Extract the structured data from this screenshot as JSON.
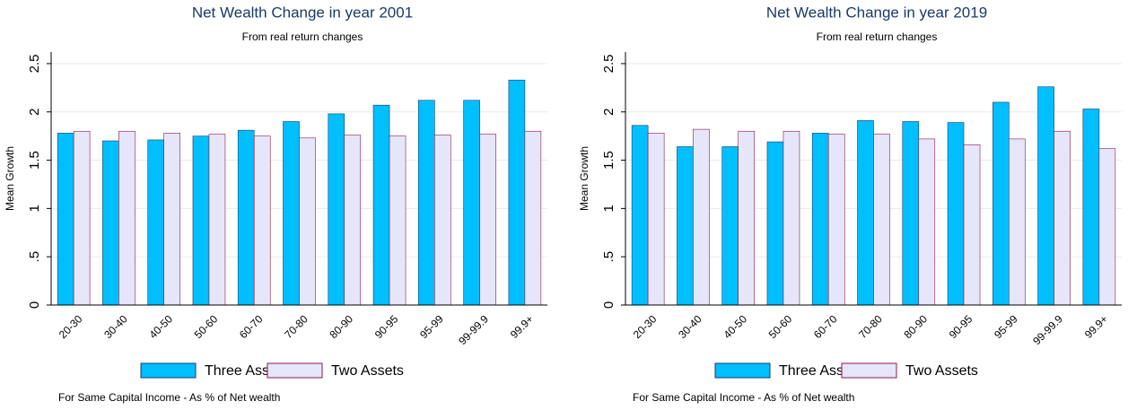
{
  "chart_data": [
    {
      "type": "bar",
      "title": "Net Wealth Change in year 2001",
      "subtitle": "From real return changes",
      "y_label": "Mean Growth",
      "note": "For Same Capital Income - As % of Net wealth",
      "categories": [
        "20-30",
        "30-40",
        "40-50",
        "50-60",
        "60-70",
        "70-80",
        "80-90",
        "90-95",
        "95-99",
        "99-99.9",
        "99.9+"
      ],
      "series": [
        {
          "name": "Three Assets",
          "color": "#00bfff",
          "values": [
            1.78,
            1.7,
            1.71,
            1.75,
            1.81,
            1.9,
            1.98,
            2.07,
            2.12,
            2.12,
            2.33
          ]
        },
        {
          "name": "Two Assets",
          "color": "#e6e6fa",
          "values": [
            1.8,
            1.8,
            1.78,
            1.77,
            1.75,
            1.73,
            1.76,
            1.75,
            1.76,
            1.77,
            1.8
          ]
        }
      ],
      "ylim": [
        0,
        2.62
      ],
      "yticks": [
        0,
        {
          "value": 0.5,
          "label": ".5"
        },
        1,
        1.5,
        2,
        2.5
      ],
      "grid": true,
      "legend": "bottom"
    },
    {
      "type": "bar",
      "title": "Net Wealth Change in year 2019",
      "subtitle": "From real return changes",
      "y_label": "Mean Growth",
      "note": "For Same Capital Income - As % of Net wealth",
      "categories": [
        "20-30",
        "30-40",
        "40-50",
        "50-60",
        "60-70",
        "70-80",
        "80-90",
        "90-95",
        "95-99",
        "99-99.9",
        "99.9+"
      ],
      "series": [
        {
          "name": "Three Assets",
          "color": "#00bfff",
          "values": [
            1.86,
            1.64,
            1.64,
            1.69,
            1.78,
            1.91,
            1.9,
            1.89,
            2.1,
            2.26,
            2.03
          ]
        },
        {
          "name": "Two Assets",
          "color": "#e6e6fa",
          "values": [
            1.78,
            1.82,
            1.8,
            1.8,
            1.77,
            1.77,
            1.72,
            1.66,
            1.72,
            1.8,
            1.62
          ]
        }
      ],
      "ylim": [
        0,
        2.62
      ],
      "yticks": [
        0,
        {
          "value": 0.5,
          "label": ".5"
        },
        1,
        1.5,
        2,
        2.5
      ],
      "grid": true,
      "legend": "bottom"
    }
  ]
}
